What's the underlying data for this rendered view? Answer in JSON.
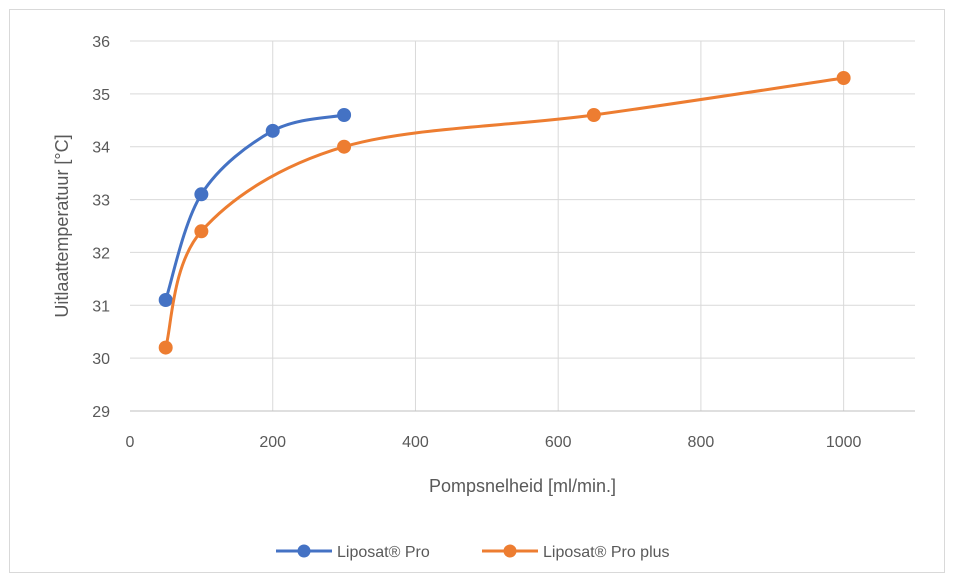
{
  "chart_data": {
    "type": "scatter",
    "title": "",
    "xlabel": "Pompsnelheid [ml/min.]",
    "ylabel": "Uitlaattemperatuur [°C]",
    "xlim": [
      0,
      1100
    ],
    "ylim": [
      29,
      36
    ],
    "x_ticks": [
      0,
      200,
      400,
      600,
      800,
      1000
    ],
    "y_ticks": [
      29,
      30,
      31,
      32,
      33,
      34,
      35,
      36
    ],
    "grid": true,
    "legend_position": "bottom",
    "smooth_lines": true,
    "series": [
      {
        "name": "Liposat® Pro",
        "color": "#4472c4",
        "x": [
          50,
          100,
          200,
          300
        ],
        "y": [
          31.1,
          33.1,
          34.3,
          34.6
        ]
      },
      {
        "name": "Liposat® Pro plus",
        "color": "#ed7d31",
        "x": [
          50,
          100,
          300,
          650,
          1000
        ],
        "y": [
          30.2,
          32.4,
          34.0,
          34.6,
          35.3
        ]
      }
    ]
  }
}
